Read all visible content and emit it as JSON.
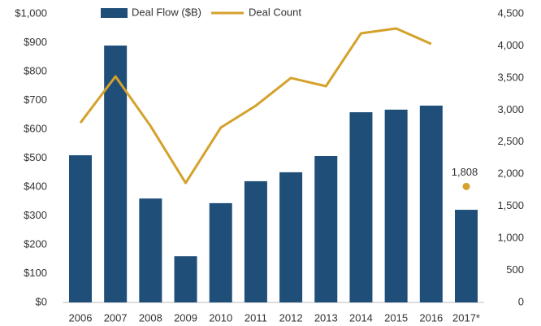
{
  "chart_data": {
    "type": "bar-line",
    "categories": [
      "2006",
      "2007",
      "2008",
      "2009",
      "2010",
      "2011",
      "2012",
      "2013",
      "2014",
      "2015",
      "2016",
      "2017*"
    ],
    "series": [
      {
        "name": "Deal Flow ($B)",
        "type": "bar",
        "color": "#1f4e79",
        "axis": "y",
        "values": [
          510,
          890,
          360,
          160,
          344,
          420,
          451,
          507,
          659,
          668,
          682,
          321
        ]
      },
      {
        "name": "Deal Count",
        "type": "line",
        "color": "#d4a22b",
        "axis": "y2",
        "values": [
          2801,
          3524,
          2750,
          1863,
          2725,
          3068,
          3499,
          3372,
          4196,
          4272,
          4031,
          null
        ],
        "highlight": {
          "category": "2017*",
          "value": 1808,
          "label": "1,808"
        }
      }
    ],
    "ylim": [
      0,
      1000
    ],
    "yticks": [
      {
        "value": 0,
        "label": "$0"
      },
      {
        "value": 100,
        "label": "$100"
      },
      {
        "value": 200,
        "label": "$200"
      },
      {
        "value": 300,
        "label": "$300"
      },
      {
        "value": 400,
        "label": "$400"
      },
      {
        "value": 500,
        "label": "$500"
      },
      {
        "value": 600,
        "label": "$600"
      },
      {
        "value": 700,
        "label": "$700"
      },
      {
        "value": 800,
        "label": "$800"
      },
      {
        "value": 900,
        "label": "$900"
      },
      {
        "value": 1000,
        "label": "$1,000"
      }
    ],
    "y2lim": [
      0,
      4500
    ],
    "y2ticks": [
      0,
      500,
      {
        "value": 1000,
        "label": "1,000"
      },
      {
        "value": 1500,
        "label": "1,500"
      },
      {
        "value": 2000,
        "label": "2,000"
      },
      {
        "value": 2500,
        "label": "2,500"
      },
      {
        "value": 3000,
        "label": "3,000"
      },
      {
        "value": 3500,
        "label": "3,500"
      },
      {
        "value": 4000,
        "label": "4,000"
      },
      {
        "value": 4500,
        "label": "4,500"
      }
    ],
    "grid": false
  }
}
